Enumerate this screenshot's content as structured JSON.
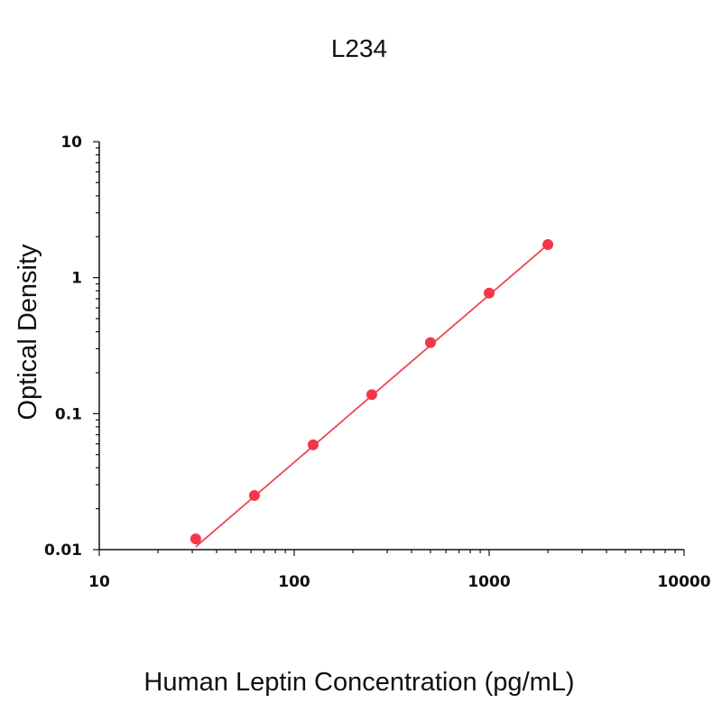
{
  "chart_data": {
    "type": "scatter",
    "title": "L234",
    "xlabel": "Human Leptin Concentration (pg/mL)",
    "ylabel": "Optical Density",
    "x_scale": "log",
    "y_scale": "log",
    "xlim": [
      10,
      10000
    ],
    "ylim": [
      0.01,
      10
    ],
    "x_ticks": [
      {
        "value": 10,
        "label": "10"
      },
      {
        "value": 100,
        "label": "100"
      },
      {
        "value": 1000,
        "label": "1000"
      },
      {
        "value": 10000,
        "label": "10000"
      }
    ],
    "y_ticks": [
      {
        "value": 0.01,
        "label": "0.01"
      },
      {
        "value": 0.1,
        "label": "0.1"
      },
      {
        "value": 1,
        "label": "1"
      },
      {
        "value": 10,
        "label": "10"
      }
    ],
    "grid": false,
    "legend": "none",
    "series": [
      {
        "points": [
          {
            "x": 31.25,
            "y": 0.012
          },
          {
            "x": 62.5,
            "y": 0.025
          },
          {
            "x": 125,
            "y": 0.059
          },
          {
            "x": 250,
            "y": 0.138
          },
          {
            "x": 500,
            "y": 0.333
          },
          {
            "x": 1000,
            "y": 0.77
          },
          {
            "x": 2000,
            "y": 1.75
          }
        ],
        "fit_line": [
          {
            "x": 31.25,
            "y": 0.0105
          },
          {
            "x": 2000,
            "y": 1.75
          }
        ],
        "color": "#f0384a",
        "line_color": "#e84a4f"
      }
    ]
  }
}
